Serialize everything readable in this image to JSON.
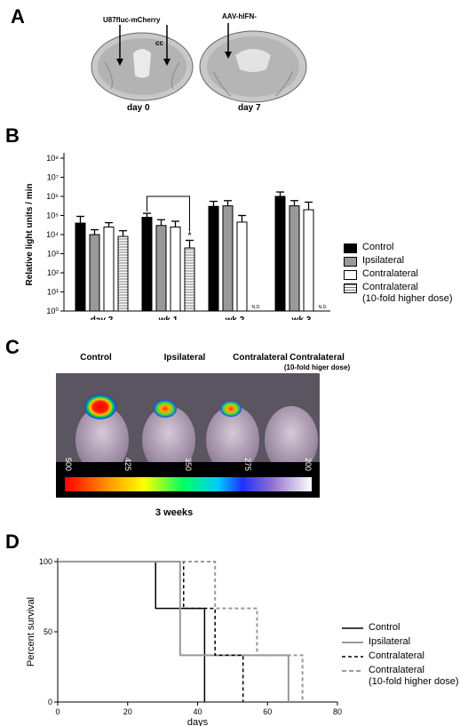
{
  "panels": {
    "a": {
      "letter": "A",
      "slice_left": {
        "injection_label": "U87fluc-mCherry",
        "region_label": "cc",
        "day_label": "day 0"
      },
      "slice_right": {
        "injection_label": "AAV-hIFN-",
        "day_label": "day 7"
      }
    },
    "b": {
      "letter": "B",
      "legend": [
        "Control",
        "Ipsilateral",
        "Contralateral",
        "Contralateral\n(10-fold higher dose)"
      ]
    },
    "c": {
      "letter": "C",
      "mouse_labels": [
        "Control",
        "Ipsilateral",
        "Contralateral",
        "Contralateral"
      ],
      "mouse_sublabel": "(10-fold higer dose)",
      "colorbar_ticks": [
        "500",
        "425",
        "350",
        "275",
        "200"
      ],
      "time_label": "3 weeks"
    },
    "d": {
      "letter": "D",
      "legend": [
        "Control",
        "Ipsilateral",
        "Contralateral",
        "Contralateral\n(10-fold higher dose)"
      ]
    }
  },
  "chart_data": [
    {
      "type": "bar",
      "ylabel": "Relative light units / min",
      "yscale": "log",
      "ylim": [
        1,
        100000000
      ],
      "yticks": [
        "10⁰",
        "10¹",
        "10²",
        "10³",
        "10⁴",
        "10⁵",
        "10⁶",
        "10⁷",
        "10⁸"
      ],
      "categories": [
        "day 2",
        "wk 1",
        "wk 2",
        "wk 3"
      ],
      "series": [
        {
          "name": "Control",
          "color": "#000000",
          "values": [
            40000,
            80000,
            300000,
            1000000
          ],
          "errors": [
            90000,
            130000,
            550000,
            1700000
          ]
        },
        {
          "name": "Ipsilateral",
          "color": "#999999",
          "values": [
            10000,
            30000,
            320000,
            320000
          ],
          "errors": [
            18000,
            60000,
            600000,
            600000
          ]
        },
        {
          "name": "Contralateral",
          "color": "#ffffff",
          "values": [
            25000,
            25000,
            45000,
            200000
          ],
          "errors": [
            42000,
            50000,
            100000,
            500000
          ]
        },
        {
          "name": "Contralateral (10-fold higher dose)",
          "color": "hatched",
          "values": [
            8000,
            2000,
            null,
            null
          ],
          "errors": [
            16000,
            5000,
            null,
            null
          ],
          "na_label": "N.D."
        }
      ],
      "significance": {
        "between": [
          "Control",
          "Contralateral (10-fold higher dose)"
        ],
        "category": "wk 1",
        "label": "*"
      }
    },
    {
      "type": "line",
      "subtype": "kaplan-meier",
      "xlabel": "days",
      "ylabel": "Percent survival",
      "xlim": [
        0,
        80
      ],
      "ylim": [
        0,
        100
      ],
      "xticks": [
        0,
        20,
        40,
        60,
        80
      ],
      "yticks": [
        0,
        50,
        100
      ],
      "series": [
        {
          "name": "Control",
          "color": "#000000",
          "dash": "solid",
          "x": [
            0,
            28,
            28,
            42,
            42
          ],
          "y": [
            100,
            100,
            66.7,
            66.7,
            0
          ]
        },
        {
          "name": "Ipsilateral",
          "color": "#999999",
          "dash": "solid",
          "x": [
            0,
            35,
            35,
            66,
            66
          ],
          "y": [
            100,
            100,
            33.3,
            33.3,
            0
          ]
        },
        {
          "name": "Contralateral",
          "color": "#000000",
          "dash": "dashed",
          "x": [
            0,
            36,
            36,
            45,
            45,
            53,
            53
          ],
          "y": [
            100,
            100,
            66.7,
            66.7,
            33.3,
            33.3,
            0
          ]
        },
        {
          "name": "Contralateral (10-fold higher dose)",
          "color": "#999999",
          "dash": "dashed",
          "x": [
            0,
            45,
            45,
            57,
            57,
            70,
            70
          ],
          "y": [
            100,
            100,
            66.7,
            66.7,
            33.3,
            33.3,
            0
          ]
        }
      ]
    }
  ]
}
